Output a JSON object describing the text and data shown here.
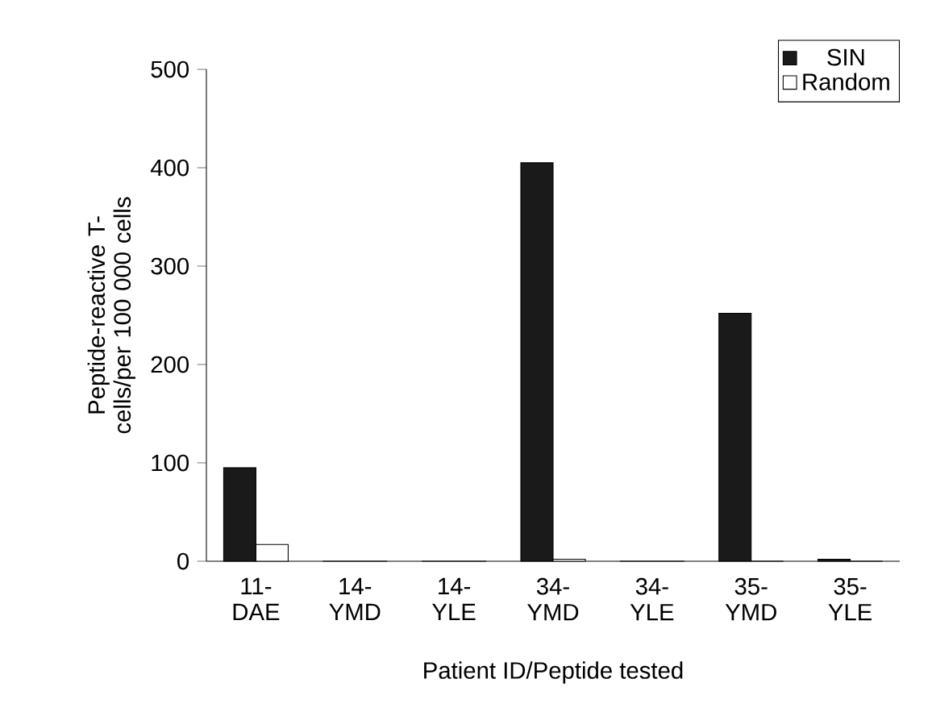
{
  "chart_data": {
    "type": "bar",
    "xlabel": "Patient ID/Peptide tested",
    "ylabel": "Peptide-reactive T-cells/per 100 000 cells",
    "categories": [
      "11- DAE",
      "14- YMD",
      "14- YLE",
      "34- YMD",
      "34- YLE",
      "35- YMD",
      "35- YLE"
    ],
    "series": [
      {
        "name": "SIN",
        "color": "#1a1a1a",
        "values": [
          95,
          0,
          0,
          405,
          0,
          252,
          2
        ]
      },
      {
        "name": "Random",
        "color": "#ffffff",
        "values": [
          17,
          0,
          0,
          2,
          0,
          0,
          0
        ]
      }
    ],
    "ylim": [
      0,
      500
    ],
    "yticks": [
      0,
      100,
      200,
      300,
      400,
      500
    ],
    "legend": "top right"
  }
}
